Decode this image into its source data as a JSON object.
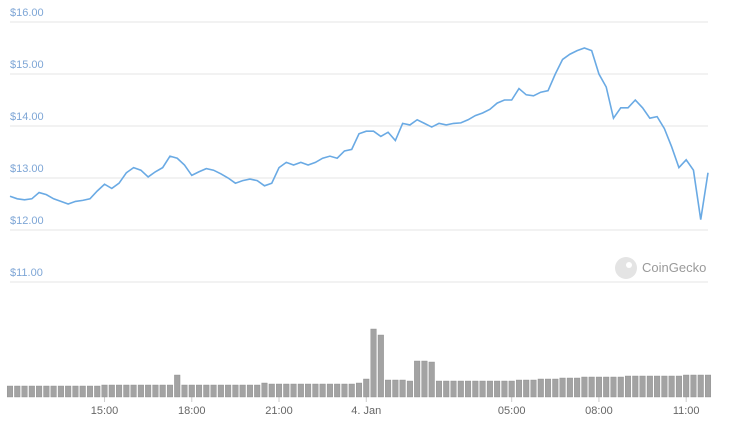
{
  "chart_data": [
    {
      "type": "line",
      "x": [
        11.75,
        12,
        12.25,
        12.5,
        12.75,
        13,
        13.25,
        13.5,
        13.75,
        14,
        14.25,
        14.5,
        14.75,
        15,
        15.25,
        15.5,
        15.75,
        16,
        16.25,
        16.5,
        16.75,
        17,
        17.25,
        17.5,
        17.75,
        18,
        18.25,
        18.5,
        18.75,
        19,
        19.25,
        19.5,
        19.75,
        20,
        20.25,
        20.5,
        20.75,
        21,
        21.25,
        21.5,
        21.75,
        22,
        22.25,
        22.5,
        22.75,
        23,
        23.25,
        23.5,
        23.75,
        24,
        24.25,
        24.5,
        24.75,
        25,
        25.25,
        25.5,
        25.75,
        26,
        26.25,
        26.5,
        26.75,
        27,
        27.25,
        27.5,
        27.75,
        28,
        28.25,
        28.5,
        28.75,
        29,
        29.25,
        29.5,
        29.75,
        30,
        30.25,
        30.5,
        30.75,
        31,
        31.25,
        31.5,
        31.75,
        32,
        32.25,
        32.5,
        32.75,
        33,
        33.25,
        33.5,
        33.75,
        34,
        34.25,
        34.5,
        34.75,
        35,
        35.25,
        35.5,
        35.75
      ],
      "series": [
        {
          "color": "#6aaae4",
          "values": [
            12.65,
            12.6,
            12.58,
            12.6,
            12.72,
            12.68,
            12.6,
            12.55,
            12.5,
            12.55,
            12.57,
            12.6,
            12.75,
            12.88,
            12.8,
            12.9,
            13.1,
            13.2,
            13.15,
            13.02,
            13.12,
            13.2,
            13.42,
            13.38,
            13.25,
            13.05,
            13.12,
            13.18,
            13.15,
            13.08,
            13.0,
            12.9,
            12.95,
            12.98,
            12.95,
            12.85,
            12.9,
            13.2,
            13.3,
            13.25,
            13.3,
            13.25,
            13.3,
            13.38,
            13.42,
            13.38,
            13.52,
            13.55,
            13.85,
            13.9,
            13.9,
            13.8,
            13.88,
            13.72,
            14.05,
            14.02,
            14.12,
            14.05,
            13.98,
            14.05,
            14.02,
            14.05,
            14.06,
            14.12,
            14.2,
            14.25,
            14.32,
            14.44,
            14.5,
            14.5,
            14.72,
            14.6,
            14.58,
            14.65,
            14.68,
            15.0,
            15.28,
            15.38,
            15.45,
            15.5,
            15.45,
            15.0,
            14.75,
            14.15,
            14.35,
            14.35,
            14.5,
            14.35,
            14.15,
            14.18,
            13.95,
            13.6,
            13.2,
            13.35,
            13.15,
            12.2,
            13.1
          ]
        }
      ],
      "xlim": [
        11.75,
        35.75
      ],
      "xticks": [
        {
          "value": 15,
          "label": "15:00"
        },
        {
          "value": 18,
          "label": "18:00"
        },
        {
          "value": 21,
          "label": "21:00"
        },
        {
          "value": 24,
          "label": "4. Jan"
        },
        {
          "value": 29,
          "label": "05:00"
        },
        {
          "value": 32,
          "label": "08:00"
        },
        {
          "value": 35,
          "label": "11:00"
        }
      ],
      "ylim": [
        11,
        16
      ],
      "yticks": [
        {
          "value": 11,
          "label": "$11.00"
        },
        {
          "value": 12,
          "label": "$12.00"
        },
        {
          "value": 13,
          "label": "$13.00"
        },
        {
          "value": 14,
          "label": "$14.00"
        },
        {
          "value": 15,
          "label": "$15.00"
        },
        {
          "value": 16,
          "label": "$16.00"
        }
      ],
      "grid": true,
      "watermark": "CoinGecko"
    },
    {
      "type": "bar",
      "color": "#a3a3a3",
      "values": [
        11,
        11,
        11,
        11,
        11,
        11,
        11,
        11,
        11,
        11,
        11,
        11,
        11,
        12,
        12,
        12,
        12,
        12,
        12,
        12,
        12,
        12,
        12,
        22,
        12,
        12,
        12,
        12,
        12,
        12,
        12,
        12,
        12,
        12,
        12,
        14,
        13,
        13,
        13,
        13,
        13,
        13,
        13,
        13,
        13,
        13,
        13,
        13,
        14,
        18,
        68,
        62,
        17,
        17,
        17,
        16,
        36,
        36,
        35,
        16,
        16,
        16,
        16,
        16,
        16,
        16,
        16,
        16,
        16,
        16,
        17,
        17,
        17,
        18,
        18,
        18,
        19,
        19,
        19,
        20,
        20,
        20,
        20,
        20,
        20,
        21,
        21,
        21,
        21,
        21,
        21,
        21,
        21,
        22,
        22,
        22,
        22
      ],
      "ylim": [
        0,
        70
      ]
    }
  ]
}
